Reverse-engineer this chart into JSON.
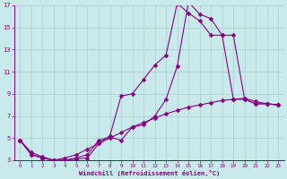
{
  "xlabel": "Windchill (Refroidissement éolien,°C)",
  "bg_color": "#c8eaea",
  "line_color": "#880088",
  "grid_color": "#aacccc",
  "xlim": [
    -0.5,
    23.5
  ],
  "ylim": [
    3,
    17
  ],
  "xticks": [
    0,
    1,
    2,
    3,
    4,
    5,
    6,
    7,
    8,
    9,
    10,
    11,
    12,
    13,
    14,
    15,
    16,
    17,
    18,
    19,
    20,
    21,
    22,
    23
  ],
  "yticks": [
    3,
    5,
    7,
    9,
    11,
    13,
    15,
    17
  ],
  "line1_x": [
    0,
    1,
    2,
    3,
    4,
    5,
    6,
    7,
    8,
    9,
    10,
    11,
    12,
    13,
    14,
    15,
    16,
    17,
    18,
    19,
    20,
    21,
    22,
    23
  ],
  "line1_y": [
    4.8,
    3.5,
    3.2,
    3.0,
    3.0,
    3.1,
    3.2,
    4.5,
    5.2,
    8.8,
    9.0,
    10.3,
    11.6,
    12.5,
    17.2,
    16.3,
    15.6,
    14.3,
    14.3,
    8.5,
    8.5,
    8.1,
    8.1,
    8.0
  ],
  "line2_x": [
    0,
    1,
    2,
    3,
    4,
    5,
    6,
    7,
    8,
    9,
    10,
    11,
    12,
    13,
    14,
    15,
    16,
    17,
    18,
    19,
    20,
    21,
    22,
    23
  ],
  "line2_y": [
    4.8,
    3.5,
    3.2,
    3.0,
    3.0,
    3.2,
    3.5,
    4.8,
    5.1,
    4.8,
    6.0,
    6.2,
    7.0,
    8.5,
    11.5,
    17.3,
    16.2,
    15.8,
    14.3,
    14.3,
    8.5,
    8.1,
    8.1,
    8.0
  ],
  "line3_x": [
    0,
    1,
    2,
    3,
    4,
    5,
    6,
    7,
    8,
    9,
    10,
    11,
    12,
    13,
    14,
    15,
    16,
    17,
    18,
    19,
    20,
    21,
    22,
    23
  ],
  "line3_y": [
    4.8,
    3.7,
    3.3,
    3.0,
    3.2,
    3.5,
    4.0,
    4.5,
    5.0,
    5.5,
    6.0,
    6.4,
    6.8,
    7.2,
    7.5,
    7.8,
    8.0,
    8.2,
    8.4,
    8.5,
    8.6,
    8.3,
    8.1,
    8.0
  ]
}
